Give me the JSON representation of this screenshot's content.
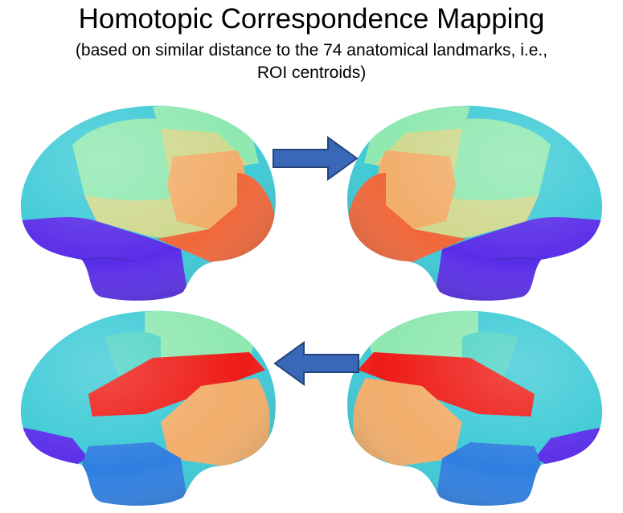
{
  "title": "Homotopic Correspondence Mapping",
  "subtitle_line1": "(based on similar distance to the 74 anatomical landmarks, i.e.,",
  "subtitle_line2": "ROI centroids)",
  "colors": {
    "arrow_fill": "#3a68b8",
    "arrow_stroke": "#26437a",
    "cyan": "#3ccad6",
    "teal": "#4fd3c4",
    "mint": "#8fe8b0",
    "sand": "#cfd88e",
    "peach": "#f2ae6b",
    "orange": "#f0673a",
    "red": "#ee1b16",
    "blue": "#2f7fe0",
    "violet": "#5a2ee8"
  },
  "panels": [
    {
      "position": "top-left",
      "view": "left lateral"
    },
    {
      "position": "top-right",
      "view": "right lateral"
    },
    {
      "position": "bottom-left",
      "view": "left lateral"
    },
    {
      "position": "bottom-right",
      "view": "right lateral"
    }
  ],
  "arrows": [
    {
      "row": "top",
      "direction": "right"
    },
    {
      "row": "bottom",
      "direction": "left"
    }
  ]
}
